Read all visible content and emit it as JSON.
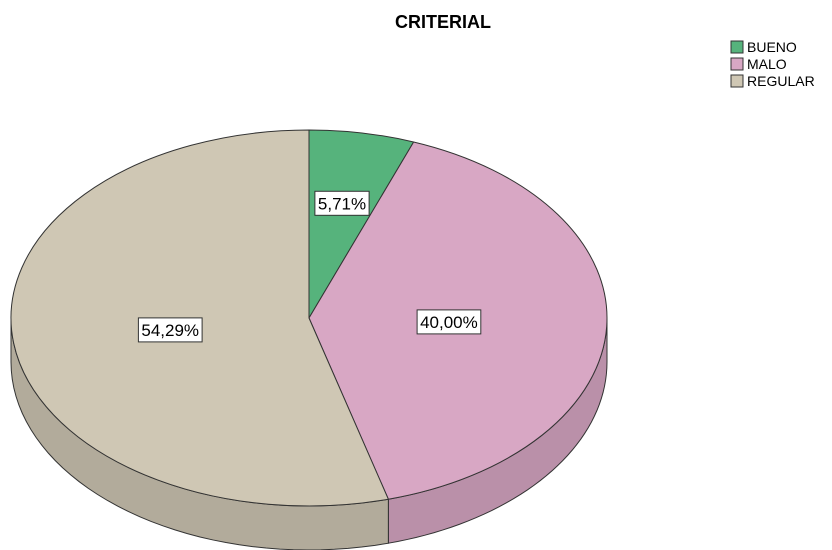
{
  "chart_data": {
    "type": "pie",
    "title": "CRITERIAL",
    "slices": [
      {
        "label": "BUENO",
        "value": 5.71,
        "display": "5,71%",
        "color": "#56b37c"
      },
      {
        "label": "MALO",
        "value": 40.0,
        "display": "40,00%",
        "color": "#d8a7c4"
      },
      {
        "label": "REGULAR",
        "value": 54.29,
        "display": "54,29%",
        "color": "#cfc7b4"
      }
    ],
    "legend": {
      "placement": "top-right",
      "entries": [
        "BUENO",
        "MALO",
        "REGULAR"
      ]
    },
    "three_d": true
  }
}
